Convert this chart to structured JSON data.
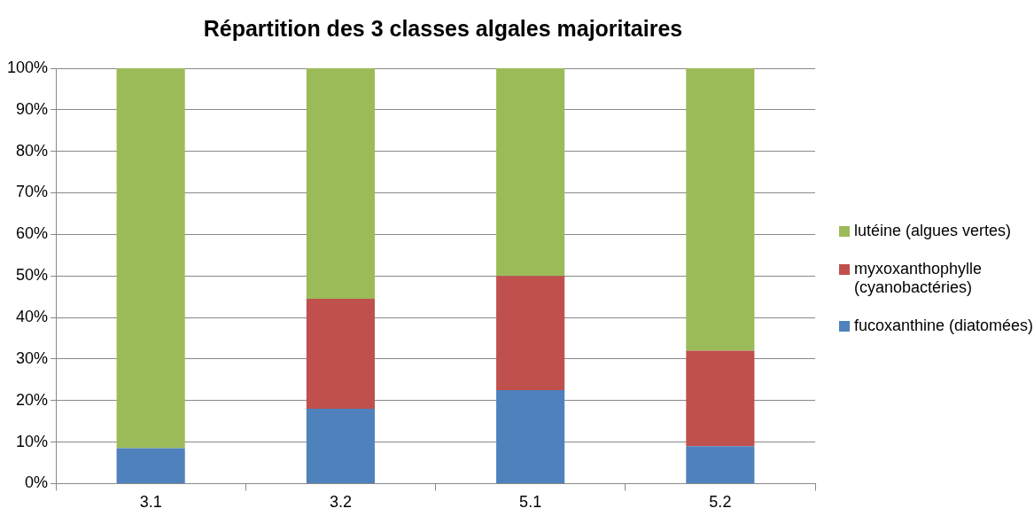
{
  "chart_data": {
    "type": "bar",
    "title": "Répartition des 3 classes algales majoritaires",
    "categories": [
      "3.1",
      "3.2",
      "5.1",
      "5.2"
    ],
    "stacked": true,
    "series": [
      {
        "name": "fucoxanthine (diatomées)",
        "color": "#4f81bd",
        "values": [
          8.5,
          18,
          22.5,
          9
        ]
      },
      {
        "name": "myxoxanthophylle (cyanobactéries)",
        "color": "#c0504d",
        "values": [
          0,
          26.5,
          27.5,
          23
        ]
      },
      {
        "name": "lutéine (algues vertes)",
        "color": "#9bbb59",
        "values": [
          91.5,
          55.5,
          50,
          68
        ]
      }
    ],
    "ylim": [
      0,
      100
    ],
    "yticks": [
      {
        "value": 0,
        "label": "0%"
      },
      {
        "value": 10,
        "label": "10%"
      },
      {
        "value": 20,
        "label": "20%"
      },
      {
        "value": 30,
        "label": "30%"
      },
      {
        "value": 40,
        "label": "40%"
      },
      {
        "value": 50,
        "label": "50%"
      },
      {
        "value": 60,
        "label": "60%"
      },
      {
        "value": 70,
        "label": "70%"
      },
      {
        "value": 80,
        "label": "80%"
      },
      {
        "value": 90,
        "label": "90%"
      },
      {
        "value": 100,
        "label": "100%"
      }
    ],
    "grid": "y",
    "legend": "right"
  }
}
